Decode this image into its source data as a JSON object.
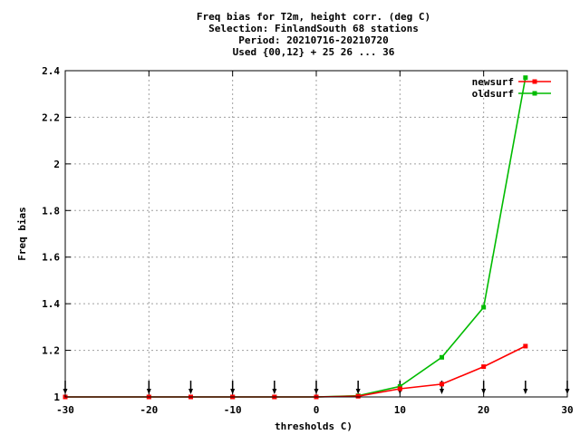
{
  "chart_data": {
    "type": "line",
    "title_lines": [
      "Freq bias  for T2m, height corr. (deg C)",
      "Selection: FinlandSouth     68 stations",
      "Period: 20210716-20210720",
      "Used {00,12} + 25 26 ... 36"
    ],
    "xlabel": "thresholds C)",
    "ylabel": "Freq bias",
    "xlim": [
      -30,
      30
    ],
    "ylim": [
      1,
      2.4
    ],
    "xticks": [
      -30,
      -20,
      -10,
      0,
      10,
      20,
      30
    ],
    "yticks": [
      1,
      1.2,
      1.4,
      1.6,
      1.8,
      2,
      2.2,
      2.4
    ],
    "ytick_labels": [
      "1",
      "1.2",
      "1.4",
      "1.6",
      "1.8",
      "2",
      "2.2",
      "2.4"
    ],
    "grid": true,
    "legend_position": "top-right",
    "x": [
      -30,
      -20,
      -15,
      -10,
      -5,
      0,
      5,
      10,
      15,
      20,
      25
    ],
    "series": [
      {
        "name": "newsurf",
        "color": "#ff0000",
        "values": [
          1.0,
          1.0,
          1.0,
          1.0,
          1.0,
          1.0,
          1.003,
          1.035,
          1.055,
          1.13,
          1.218
        ]
      },
      {
        "name": "oldsurf",
        "color": "#00bb00",
        "values": [
          1.0,
          1.0,
          1.0,
          1.0,
          1.0,
          1.0,
          1.005,
          1.045,
          1.17,
          1.385,
          2.37
        ]
      }
    ],
    "threshold_arrows_x": [
      -30,
      -20,
      -15,
      -10,
      -5,
      0,
      5,
      10,
      15,
      20,
      25,
      30
    ]
  }
}
